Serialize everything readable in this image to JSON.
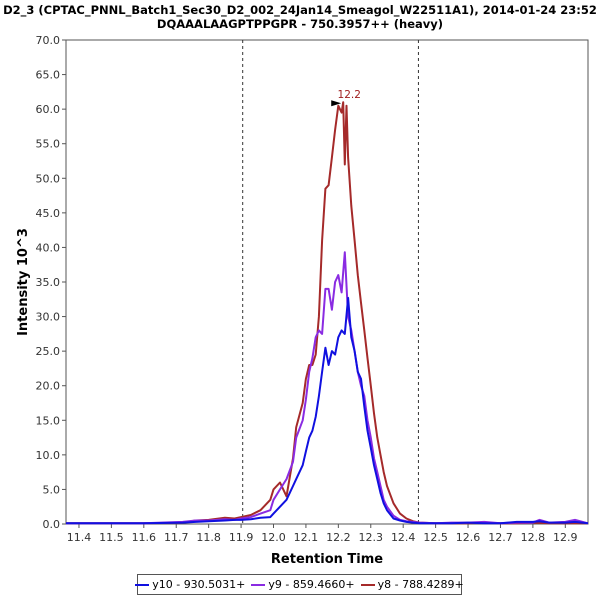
{
  "title_line1": "D2_3 (CPTAC_PNNL_Batch1_Sec30_D2_002_24Jan14_Smeagol_W22511A1), 2014-01-24 23:52",
  "title_line2": "DQAAALAAGPTPPGPR - 750.3957++ (heavy)",
  "chart_data": {
    "type": "line",
    "xlabel": "Retention Time",
    "ylabel": "Intensity 10^3",
    "xlim": [
      11.36,
      12.97
    ],
    "ylim": [
      0,
      70
    ],
    "x_ticks": [
      "11.4",
      "11.5",
      "11.6",
      "11.7",
      "11.8",
      "11.9",
      "12.0",
      "12.1",
      "12.2",
      "12.3",
      "12.4",
      "12.5",
      "12.6",
      "12.7",
      "12.8",
      "12.9"
    ],
    "y_ticks": [
      "0.0",
      "5.0",
      "10.0",
      "15.0",
      "20.0",
      "25.0",
      "30.0",
      "35.0",
      "40.0",
      "45.0",
      "50.0",
      "55.0",
      "60.0",
      "65.0",
      "70.0"
    ],
    "boundaries": [
      11.905,
      12.447
    ],
    "peak_annotation": {
      "label": "12.2",
      "x": 12.215,
      "y": 61.0,
      "color": "#a02020"
    },
    "series": [
      {
        "name": "y10 - 930.5031+",
        "color": "#1010e0",
        "x": [
          11.36,
          11.6,
          11.72,
          11.76,
          11.8,
          11.85,
          11.88,
          11.9,
          11.93,
          11.96,
          11.99,
          12.0,
          12.02,
          12.04,
          12.06,
          12.07,
          12.09,
          12.1,
          12.11,
          12.12,
          12.13,
          12.14,
          12.15,
          12.16,
          12.17,
          12.18,
          12.19,
          12.2,
          12.21,
          12.22,
          12.23,
          12.24,
          12.25,
          12.26,
          12.27,
          12.28,
          12.29,
          12.3,
          12.31,
          12.32,
          12.33,
          12.34,
          12.35,
          12.37,
          12.39,
          12.41,
          12.43,
          12.45,
          12.5,
          12.55,
          12.6,
          12.65,
          12.7,
          12.75,
          12.8,
          12.82,
          12.85,
          12.9,
          12.93,
          12.97
        ],
        "y": [
          0.1,
          0.1,
          0.2,
          0.3,
          0.4,
          0.5,
          0.6,
          0.6,
          0.7,
          0.9,
          1.0,
          1.5,
          2.5,
          3.5,
          5.5,
          6.5,
          8.5,
          10.5,
          12.5,
          13.5,
          15.5,
          18.5,
          22.0,
          25.5,
          23.0,
          25.0,
          24.5,
          27.0,
          28.0,
          27.5,
          32.7,
          27.0,
          25.0,
          22.0,
          21.0,
          17.0,
          13.5,
          11.0,
          8.5,
          6.5,
          4.5,
          3.0,
          2.0,
          0.8,
          0.5,
          0.3,
          0.2,
          0.1,
          0.1,
          0.1,
          0.2,
          0.1,
          0.1,
          0.3,
          0.3,
          0.4,
          0.2,
          0.2,
          0.3,
          0.1
        ]
      },
      {
        "name": "y9 - 859.4660+",
        "color": "#8a2be2",
        "x": [
          11.36,
          11.6,
          11.72,
          11.76,
          11.8,
          11.85,
          11.88,
          11.9,
          11.93,
          11.96,
          11.99,
          12.0,
          12.02,
          12.04,
          12.06,
          12.07,
          12.09,
          12.1,
          12.11,
          12.12,
          12.13,
          12.14,
          12.15,
          12.16,
          12.17,
          12.18,
          12.19,
          12.2,
          12.21,
          12.22,
          12.23,
          12.24,
          12.25,
          12.26,
          12.27,
          12.28,
          12.29,
          12.3,
          12.31,
          12.32,
          12.33,
          12.34,
          12.35,
          12.37,
          12.39,
          12.41,
          12.43,
          12.45,
          12.5,
          12.55,
          12.6,
          12.65,
          12.7,
          12.75,
          12.8,
          12.82,
          12.85,
          12.9,
          12.93,
          12.97
        ],
        "y": [
          0.1,
          0.1,
          0.3,
          0.5,
          0.5,
          0.7,
          0.6,
          0.8,
          1.0,
          1.5,
          2.0,
          3.5,
          5.0,
          6.5,
          9.0,
          12.5,
          15.0,
          18.0,
          22.0,
          24.0,
          27.0,
          28.0,
          27.5,
          34.0,
          34.0,
          31.0,
          35.0,
          36.0,
          33.5,
          39.3,
          30.0,
          28.0,
          25.0,
          22.0,
          20.0,
          18.5,
          15.0,
          12.5,
          9.5,
          7.5,
          5.5,
          3.5,
          2.5,
          1.2,
          0.6,
          0.4,
          0.3,
          0.2,
          0.1,
          0.2,
          0.2,
          0.3,
          0.1,
          0.2,
          0.2,
          0.6,
          0.2,
          0.3,
          0.6,
          0.1
        ]
      },
      {
        "name": "y8 - 788.4289+",
        "color": "#a52a2a",
        "x": [
          11.36,
          11.6,
          11.72,
          11.76,
          11.8,
          11.85,
          11.88,
          11.9,
          11.93,
          11.96,
          11.99,
          12.0,
          12.02,
          12.04,
          12.06,
          12.07,
          12.09,
          12.1,
          12.11,
          12.12,
          12.13,
          12.14,
          12.15,
          12.16,
          12.17,
          12.18,
          12.19,
          12.2,
          12.21,
          12.215,
          12.22,
          12.225,
          12.23,
          12.24,
          12.25,
          12.26,
          12.27,
          12.28,
          12.29,
          12.3,
          12.31,
          12.32,
          12.33,
          12.34,
          12.35,
          12.37,
          12.39,
          12.41,
          12.43,
          12.45,
          12.5,
          12.55,
          12.6,
          12.65,
          12.7,
          12.75,
          12.8,
          12.85,
          12.9,
          12.97
        ],
        "y": [
          0.1,
          0.1,
          0.2,
          0.5,
          0.6,
          0.9,
          0.8,
          1.0,
          1.3,
          2.0,
          3.5,
          5.0,
          6.0,
          4.0,
          9.5,
          14.0,
          17.5,
          21.0,
          23.0,
          23.0,
          24.5,
          30.0,
          41.0,
          48.5,
          49.0,
          53.0,
          57.0,
          60.5,
          59.5,
          61.0,
          52.0,
          60.5,
          53.0,
          46.0,
          41.0,
          36.0,
          32.0,
          28.0,
          24.0,
          20.0,
          16.0,
          12.5,
          10.0,
          7.5,
          5.5,
          3.0,
          1.5,
          0.8,
          0.4,
          0.2,
          0.1,
          0.1,
          0.1,
          0.2,
          0.1,
          0.1,
          0.2,
          0.1,
          0.1,
          0.1
        ]
      }
    ]
  }
}
